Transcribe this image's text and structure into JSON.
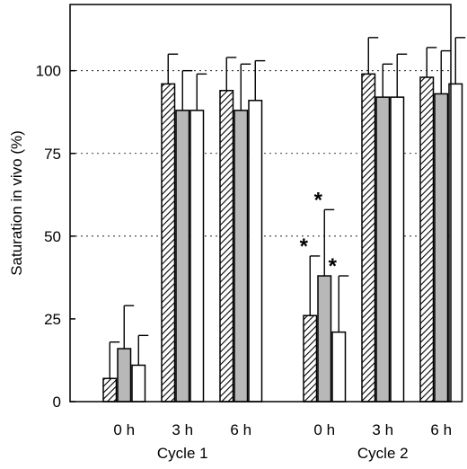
{
  "chart_data": {
    "type": "bar",
    "ylabel": "Saturation in vivo (%)",
    "ylim": [
      0,
      120
    ],
    "yticks": [
      0,
      25,
      50,
      75,
      100
    ],
    "grid": "horizontal dashed at 50, 75 and 100",
    "error_bars": "upper only",
    "groups": [
      {
        "label": "Cycle 1",
        "categories": [
          {
            "label": "0 h",
            "values": [
              7,
              16,
              11
            ],
            "errors": [
              11,
              13,
              9
            ],
            "significant": [
              false,
              false,
              false
            ]
          },
          {
            "label": "3 h",
            "values": [
              96,
              88,
              88
            ],
            "errors": [
              9,
              12,
              11
            ],
            "significant": [
              false,
              false,
              false
            ]
          },
          {
            "label": "6 h",
            "values": [
              94,
              88,
              91
            ],
            "errors": [
              10,
              14,
              12
            ],
            "significant": [
              false,
              false,
              false
            ]
          }
        ]
      },
      {
        "label": "Cycle 2",
        "categories": [
          {
            "label": "0 h",
            "values": [
              26,
              38,
              21
            ],
            "errors": [
              18,
              20,
              17
            ],
            "significant": [
              true,
              true,
              true
            ]
          },
          {
            "label": "3 h",
            "values": [
              99,
              92,
              92
            ],
            "errors": [
              11,
              10,
              13
            ],
            "significant": [
              false,
              false,
              false
            ]
          },
          {
            "label": "6 h",
            "values": [
              98,
              93,
              96
            ],
            "errors": [
              9,
              13,
              14
            ],
            "significant": [
              false,
              false,
              false
            ]
          }
        ]
      }
    ],
    "significance_marker": "*",
    "series_fills": [
      "hatched",
      "#b8b8b8",
      "#ffffff"
    ]
  }
}
